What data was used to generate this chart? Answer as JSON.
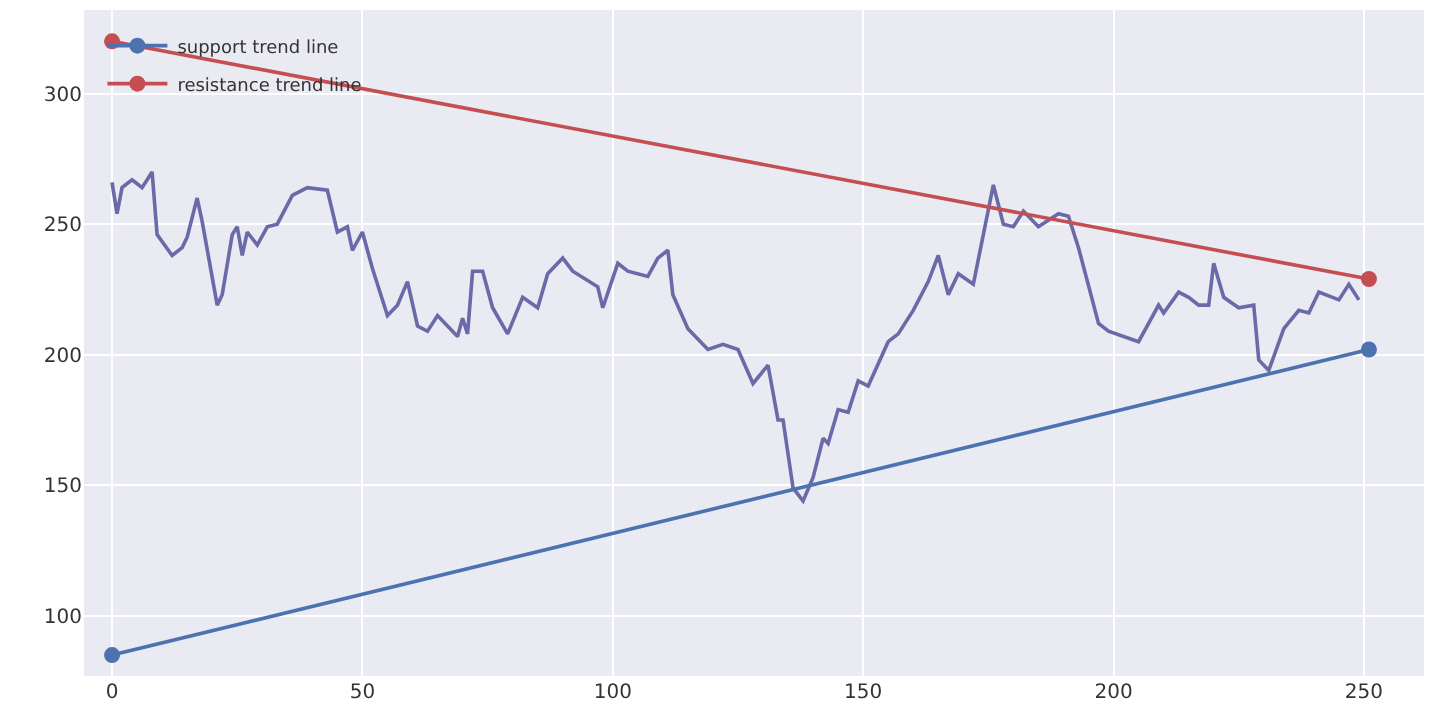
{
  "chart_data": {
    "type": "line",
    "xlim": [
      -5.6,
      262
    ],
    "ylim": [
      77,
      332
    ],
    "xticks": [
      0,
      50,
      100,
      150,
      200,
      250
    ],
    "yticks": [
      100,
      150,
      200,
      250,
      300
    ],
    "grid": true,
    "legend": "top left",
    "marker": "circle",
    "line_style": "solid",
    "series": [
      {
        "color": "#6a6aa8",
        "marker": "none",
        "x": [
          0,
          1,
          2,
          4,
          6,
          8,
          9,
          12,
          14,
          15,
          17,
          18,
          21,
          22,
          24,
          25,
          26,
          27,
          29,
          31,
          33,
          36,
          39,
          43,
          45,
          47,
          48,
          50,
          52,
          55,
          57,
          59,
          61,
          63,
          65,
          67,
          69,
          70,
          71,
          72,
          74,
          76,
          79,
          82,
          85,
          87,
          90,
          92,
          97,
          98,
          101,
          103,
          107,
          109,
          111,
          112,
          115,
          119,
          122,
          125,
          128,
          131,
          133,
          134,
          136,
          138,
          140,
          142,
          143,
          145,
          147,
          149,
          151,
          155,
          157,
          160,
          163,
          165,
          167,
          169,
          172,
          176,
          178,
          180,
          182,
          185,
          189,
          191,
          193,
          197,
          199,
          205,
          209,
          210,
          213,
          215,
          217,
          219,
          220,
          222,
          225,
          228,
          229,
          231,
          234,
          237,
          239,
          241,
          245,
          247,
          249
        ],
        "values": [
          266,
          254,
          264,
          267,
          264,
          270,
          246,
          238,
          241,
          245,
          260,
          251,
          219,
          223,
          246,
          249,
          238,
          247,
          242,
          249,
          250,
          261,
          264,
          263,
          247,
          249,
          240,
          247,
          233,
          215,
          219,
          228,
          211,
          209,
          215,
          211,
          207,
          214,
          208,
          232,
          232,
          218,
          208,
          222,
          218,
          231,
          237,
          232,
          226,
          218,
          235,
          232,
          230,
          237,
          240,
          223,
          210,
          202,
          204,
          202,
          189,
          196,
          175,
          175,
          149,
          144,
          153,
          168,
          166,
          179,
          178,
          190,
          188,
          205,
          208,
          217,
          228,
          238,
          223,
          231,
          227,
          265,
          250,
          249,
          255,
          249,
          254,
          253,
          241,
          212,
          209,
          205,
          219,
          216,
          224,
          222,
          219,
          219,
          235,
          222,
          218,
          219,
          198,
          194,
          210,
          217,
          216,
          224,
          221,
          227,
          221
        ]
      },
      {
        "name": "support trend line",
        "color": "#4c72b0",
        "x": [
          0,
          251
        ],
        "values": [
          85,
          202
        ]
      },
      {
        "name": "resistance trend line",
        "color": "#c44e52",
        "x": [
          0,
          251
        ],
        "values": [
          320,
          229
        ]
      }
    ]
  }
}
